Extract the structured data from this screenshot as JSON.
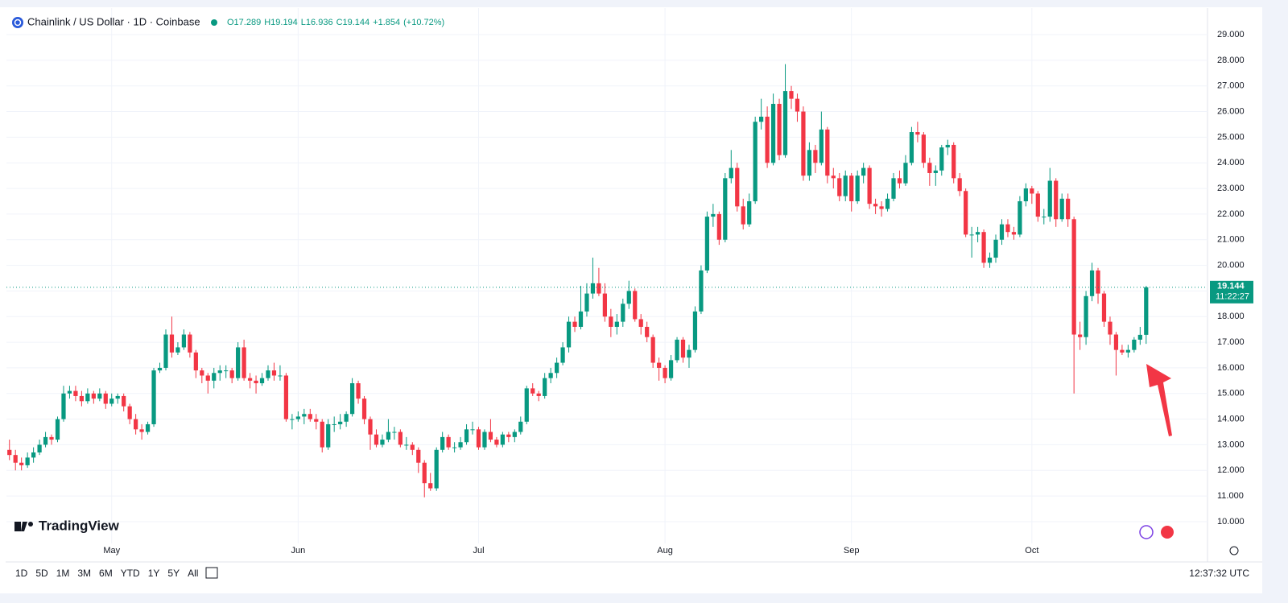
{
  "chart_data": {
    "type": "candlestick",
    "title": "Chainlink / US Dollar · 1D · Coinbase",
    "legend_values": [
      {
        "value": 17.289,
        "label": "O17.289"
      },
      {
        "value": 19.194,
        "label": "H19.194"
      },
      {
        "value": 16.936,
        "label": "L16.936"
      },
      {
        "value": 19.144,
        "label": "C19.144"
      },
      {
        "value": 1.854,
        "label": "+1.854"
      },
      {
        "value": 10.72,
        "label": "(+10.72%)"
      }
    ],
    "last_price": 19.144,
    "countdown": "11:22:27",
    "up_color": "#089981",
    "down_color": "#f23645",
    "grid": true,
    "xlim": [
      -0.5,
      199.2
    ],
    "xticks": [
      {
        "value": 17,
        "label": "May"
      },
      {
        "value": 48,
        "label": "Jun"
      },
      {
        "value": 78,
        "label": "Jul"
      },
      {
        "value": 109,
        "label": "Aug"
      },
      {
        "value": 140,
        "label": "Sep"
      },
      {
        "value": 170,
        "label": "Oct"
      }
    ],
    "ylim": [
      9.15,
      29.41
    ],
    "yticks": [
      {
        "value": 10,
        "label": "10.000"
      },
      {
        "value": 11,
        "label": "11.000"
      },
      {
        "value": 12,
        "label": "12.000"
      },
      {
        "value": 13,
        "label": "13.000"
      },
      {
        "value": 14,
        "label": "14.000"
      },
      {
        "value": 15,
        "label": "15.000"
      },
      {
        "value": 16,
        "label": "16.000"
      },
      {
        "value": 17,
        "label": "17.000"
      },
      {
        "value": 18,
        "label": "18.000"
      },
      {
        "value": 19,
        "label": "19.000"
      },
      {
        "value": 20,
        "label": "20.000"
      },
      {
        "value": 21,
        "label": "21.000"
      },
      {
        "value": 22,
        "label": "22.000"
      },
      {
        "value": 23,
        "label": "23.000"
      },
      {
        "value": 24,
        "label": "24.000"
      },
      {
        "value": 25,
        "label": "25.000"
      },
      {
        "value": 26,
        "label": "26.000"
      },
      {
        "value": 27,
        "label": "27.000"
      },
      {
        "value": 28,
        "label": "28.000"
      },
      {
        "value": 29,
        "label": "29.000"
      }
    ],
    "ohlc": [
      [
        12.8,
        13.2,
        12.4,
        12.6
      ],
      [
        12.6,
        12.8,
        12.0,
        12.3
      ],
      [
        12.3,
        12.5,
        12.0,
        12.2
      ],
      [
        12.2,
        12.7,
        12.1,
        12.5
      ],
      [
        12.5,
        12.9,
        12.3,
        12.7
      ],
      [
        12.7,
        13.2,
        12.6,
        13.0
      ],
      [
        13.0,
        13.5,
        12.9,
        13.3
      ],
      [
        13.3,
        13.4,
        13.0,
        13.2
      ],
      [
        13.2,
        14.1,
        13.1,
        14.0
      ],
      [
        14.0,
        15.3,
        13.9,
        15.0
      ],
      [
        15.0,
        15.3,
        14.8,
        15.1
      ],
      [
        15.1,
        15.3,
        14.7,
        14.9
      ],
      [
        14.9,
        15.1,
        14.5,
        14.7
      ],
      [
        14.7,
        15.2,
        14.6,
        15.0
      ],
      [
        15.0,
        15.1,
        14.6,
        14.8
      ],
      [
        14.8,
        15.2,
        14.7,
        15.0
      ],
      [
        15.0,
        15.1,
        14.4,
        14.6
      ],
      [
        14.6,
        15.0,
        14.5,
        14.8
      ],
      [
        14.8,
        15.0,
        14.6,
        14.9
      ],
      [
        14.9,
        15.0,
        14.3,
        14.5
      ],
      [
        14.5,
        14.6,
        13.8,
        14.0
      ],
      [
        14.0,
        14.2,
        13.4,
        13.6
      ],
      [
        13.6,
        13.8,
        13.2,
        13.5
      ],
      [
        13.5,
        13.9,
        13.4,
        13.8
      ],
      [
        13.8,
        16.0,
        13.7,
        15.9
      ],
      [
        15.9,
        16.2,
        15.8,
        16.0
      ],
      [
        16.0,
        17.5,
        15.9,
        17.3
      ],
      [
        17.3,
        18.0,
        16.4,
        16.6
      ],
      [
        16.6,
        17.0,
        16.5,
        16.8
      ],
      [
        16.8,
        17.5,
        16.7,
        17.3
      ],
      [
        17.3,
        17.4,
        16.4,
        16.6
      ],
      [
        16.6,
        16.7,
        15.6,
        15.9
      ],
      [
        15.9,
        16.0,
        15.4,
        15.7
      ],
      [
        15.7,
        15.8,
        15.0,
        15.5
      ],
      [
        15.5,
        16.0,
        15.2,
        15.8
      ],
      [
        15.8,
        16.1,
        15.5,
        15.9
      ],
      [
        15.9,
        16.1,
        15.6,
        15.9
      ],
      [
        15.9,
        16.0,
        15.4,
        15.6
      ],
      [
        15.6,
        17.0,
        15.5,
        16.8
      ],
      [
        16.8,
        17.1,
        15.5,
        15.6
      ],
      [
        15.6,
        15.8,
        15.2,
        15.5
      ],
      [
        15.5,
        15.7,
        15.0,
        15.4
      ],
      [
        15.4,
        15.8,
        15.3,
        15.6
      ],
      [
        15.6,
        16.1,
        15.5,
        15.9
      ],
      [
        15.9,
        16.2,
        15.5,
        15.7
      ],
      [
        15.7,
        16.1,
        15.5,
        15.7
      ],
      [
        15.7,
        15.8,
        13.9,
        14.0
      ],
      [
        14.0,
        14.2,
        13.6,
        14.0
      ],
      [
        14.0,
        14.3,
        13.9,
        14.1
      ],
      [
        14.1,
        14.4,
        13.8,
        14.2
      ],
      [
        14.2,
        14.4,
        13.9,
        14.0
      ],
      [
        14.0,
        14.2,
        13.6,
        13.9
      ],
      [
        13.9,
        14.0,
        12.7,
        12.9
      ],
      [
        12.9,
        14.0,
        12.8,
        13.8
      ],
      [
        13.8,
        14.1,
        13.5,
        13.8
      ],
      [
        13.8,
        14.2,
        13.6,
        13.9
      ],
      [
        13.9,
        14.3,
        13.7,
        14.2
      ],
      [
        14.2,
        15.6,
        14.1,
        15.4
      ],
      [
        15.4,
        15.5,
        14.6,
        14.8
      ],
      [
        14.8,
        14.9,
        13.8,
        14.0
      ],
      [
        14.0,
        14.1,
        12.8,
        13.4
      ],
      [
        13.4,
        13.6,
        12.9,
        13.0
      ],
      [
        13.0,
        13.4,
        12.9,
        13.2
      ],
      [
        13.2,
        14.0,
        13.1,
        13.5
      ],
      [
        13.5,
        13.7,
        13.2,
        13.5
      ],
      [
        13.5,
        13.6,
        12.9,
        13.0
      ],
      [
        13.0,
        13.3,
        12.8,
        13.0
      ],
      [
        13.0,
        13.1,
        12.6,
        12.8
      ],
      [
        12.8,
        12.9,
        11.9,
        12.3
      ],
      [
        12.3,
        12.4,
        10.95,
        11.5
      ],
      [
        11.5,
        11.9,
        11.2,
        11.3
      ],
      [
        11.3,
        12.9,
        11.2,
        12.8
      ],
      [
        12.8,
        13.5,
        12.7,
        13.3
      ],
      [
        13.3,
        13.4,
        12.8,
        12.9
      ],
      [
        12.9,
        13.1,
        12.7,
        12.9
      ],
      [
        12.9,
        13.3,
        12.8,
        13.1
      ],
      [
        13.1,
        13.8,
        13.0,
        13.6
      ],
      [
        13.6,
        13.9,
        13.4,
        13.6
      ],
      [
        13.6,
        13.7,
        12.8,
        12.9
      ],
      [
        12.9,
        13.6,
        12.8,
        13.5
      ],
      [
        13.5,
        14.0,
        13.1,
        13.2
      ],
      [
        13.2,
        13.3,
        12.9,
        13.0
      ],
      [
        13.0,
        13.5,
        12.9,
        13.4
      ],
      [
        13.4,
        13.5,
        13.1,
        13.3
      ],
      [
        13.3,
        13.6,
        13.1,
        13.5
      ],
      [
        13.5,
        14.1,
        13.4,
        13.9
      ],
      [
        13.9,
        15.3,
        13.8,
        15.2
      ],
      [
        15.2,
        15.4,
        14.9,
        15.0
      ],
      [
        15.0,
        15.1,
        14.7,
        14.9
      ],
      [
        14.9,
        15.8,
        14.8,
        15.6
      ],
      [
        15.6,
        16.0,
        15.4,
        15.8
      ],
      [
        15.8,
        16.4,
        15.6,
        16.2
      ],
      [
        16.2,
        17.0,
        16.1,
        16.8
      ],
      [
        16.8,
        18.0,
        16.6,
        17.8
      ],
      [
        17.8,
        18.0,
        17.4,
        17.6
      ],
      [
        17.6,
        19.2,
        17.5,
        18.2
      ],
      [
        18.2,
        19.3,
        18.0,
        18.9
      ],
      [
        18.9,
        20.3,
        18.7,
        19.3
      ],
      [
        19.3,
        19.9,
        18.8,
        18.9
      ],
      [
        18.9,
        19.3,
        17.8,
        18.0
      ],
      [
        18.0,
        18.3,
        17.2,
        17.6
      ],
      [
        17.6,
        18.1,
        17.3,
        17.8
      ],
      [
        17.8,
        18.7,
        17.6,
        18.5
      ],
      [
        18.5,
        19.4,
        18.3,
        19.0
      ],
      [
        19.0,
        19.1,
        17.8,
        17.9
      ],
      [
        17.9,
        18.1,
        17.3,
        17.6
      ],
      [
        17.6,
        17.8,
        17.0,
        17.2
      ],
      [
        17.2,
        17.3,
        16.0,
        16.2
      ],
      [
        16.2,
        16.4,
        15.5,
        16.0
      ],
      [
        16.0,
        16.1,
        15.4,
        15.6
      ],
      [
        15.6,
        16.5,
        15.5,
        16.3
      ],
      [
        16.3,
        17.2,
        16.2,
        17.1
      ],
      [
        17.1,
        17.2,
        16.2,
        16.4
      ],
      [
        16.4,
        16.9,
        16.0,
        16.7
      ],
      [
        16.7,
        18.4,
        16.6,
        18.2
      ],
      [
        18.2,
        20.0,
        18.1,
        19.8
      ],
      [
        19.8,
        22.1,
        19.7,
        21.9
      ],
      [
        21.9,
        22.4,
        21.5,
        22.0
      ],
      [
        22.0,
        22.1,
        20.8,
        21.0
      ],
      [
        21.0,
        23.6,
        20.9,
        23.4
      ],
      [
        23.4,
        24.5,
        23.2,
        23.8
      ],
      [
        23.8,
        24.0,
        22.1,
        22.3
      ],
      [
        22.3,
        22.6,
        21.4,
        21.6
      ],
      [
        21.6,
        22.8,
        21.5,
        22.5
      ],
      [
        22.5,
        25.8,
        22.4,
        25.6
      ],
      [
        25.6,
        26.5,
        25.3,
        25.8
      ],
      [
        25.8,
        26.2,
        23.8,
        24.0
      ],
      [
        24.0,
        26.7,
        23.9,
        26.3
      ],
      [
        26.3,
        26.5,
        24.1,
        24.3
      ],
      [
        24.3,
        27.85,
        24.2,
        26.8
      ],
      [
        26.8,
        27.0,
        26.1,
        26.5
      ],
      [
        26.5,
        26.7,
        25.6,
        26.0
      ],
      [
        26.0,
        26.2,
        23.3,
        23.5
      ],
      [
        23.5,
        24.8,
        23.3,
        24.5
      ],
      [
        24.5,
        24.7,
        23.6,
        24.0
      ],
      [
        24.0,
        26.0,
        23.9,
        25.3
      ],
      [
        25.3,
        25.4,
        23.2,
        23.5
      ],
      [
        23.5,
        23.8,
        23.0,
        23.4
      ],
      [
        23.4,
        23.6,
        22.5,
        22.7
      ],
      [
        22.7,
        23.7,
        22.5,
        23.5
      ],
      [
        23.5,
        23.6,
        22.1,
        22.5
      ],
      [
        22.5,
        23.7,
        22.4,
        23.5
      ],
      [
        23.5,
        24.0,
        23.2,
        23.8
      ],
      [
        23.8,
        23.9,
        22.2,
        22.4
      ],
      [
        22.4,
        22.6,
        22.0,
        22.3
      ],
      [
        22.3,
        22.5,
        21.9,
        22.2
      ],
      [
        22.2,
        22.8,
        22.1,
        22.6
      ],
      [
        22.6,
        23.6,
        22.5,
        23.4
      ],
      [
        23.4,
        23.7,
        23.0,
        23.2
      ],
      [
        23.2,
        24.3,
        23.1,
        24.0
      ],
      [
        24.0,
        25.4,
        23.9,
        25.2
      ],
      [
        25.2,
        25.6,
        24.8,
        25.1
      ],
      [
        25.1,
        25.2,
        23.8,
        24.0
      ],
      [
        24.0,
        24.2,
        23.1,
        23.6
      ],
      [
        23.6,
        23.9,
        23.1,
        23.7
      ],
      [
        23.7,
        24.7,
        23.5,
        24.6
      ],
      [
        24.6,
        24.9,
        24.3,
        24.7
      ],
      [
        24.7,
        24.8,
        23.2,
        23.4
      ],
      [
        23.4,
        23.6,
        22.7,
        22.9
      ],
      [
        22.9,
        23.0,
        21.1,
        21.2
      ],
      [
        21.2,
        21.5,
        20.3,
        21.2
      ],
      [
        21.2,
        21.5,
        20.9,
        21.3
      ],
      [
        21.3,
        21.4,
        19.9,
        20.1
      ],
      [
        20.1,
        20.5,
        19.9,
        20.3
      ],
      [
        20.3,
        21.2,
        20.1,
        21.0
      ],
      [
        21.0,
        21.8,
        20.8,
        21.6
      ],
      [
        21.6,
        21.8,
        21.1,
        21.3
      ],
      [
        21.3,
        21.5,
        21.0,
        21.2
      ],
      [
        21.2,
        22.7,
        21.1,
        22.5
      ],
      [
        22.5,
        23.2,
        22.3,
        23.0
      ],
      [
        23.0,
        23.1,
        22.4,
        22.8
      ],
      [
        22.8,
        22.9,
        21.7,
        21.9
      ],
      [
        21.9,
        22.2,
        21.6,
        21.9
      ],
      [
        21.9,
        23.8,
        21.7,
        23.3
      ],
      [
        23.3,
        23.4,
        21.5,
        21.8
      ],
      [
        21.8,
        22.8,
        21.7,
        22.6
      ],
      [
        22.6,
        22.8,
        21.5,
        21.8
      ],
      [
        21.8,
        21.9,
        15.0,
        17.3
      ],
      [
        17.3,
        17.8,
        16.7,
        17.2
      ],
      [
        17.2,
        19.0,
        16.9,
        18.8
      ],
      [
        18.8,
        20.1,
        18.6,
        19.8
      ],
      [
        19.8,
        19.9,
        18.5,
        18.9
      ],
      [
        18.9,
        19.0,
        17.6,
        17.8
      ],
      [
        17.8,
        18.0,
        16.9,
        17.3
      ],
      [
        17.3,
        17.4,
        15.7,
        16.7
      ],
      [
        16.7,
        16.9,
        16.5,
        16.6
      ],
      [
        16.6,
        16.9,
        16.4,
        16.7
      ],
      [
        16.7,
        17.2,
        16.6,
        17.1
      ],
      [
        17.1,
        17.6,
        16.9,
        17.289
      ],
      [
        17.289,
        19.194,
        16.936,
        19.144
      ]
    ]
  },
  "toolbar": {
    "ranges": [
      "1D",
      "5D",
      "1M",
      "3M",
      "6M",
      "YTD",
      "1Y",
      "5Y",
      "All"
    ],
    "clock": "12:37:32 UTC",
    "brand": "TradingView"
  }
}
